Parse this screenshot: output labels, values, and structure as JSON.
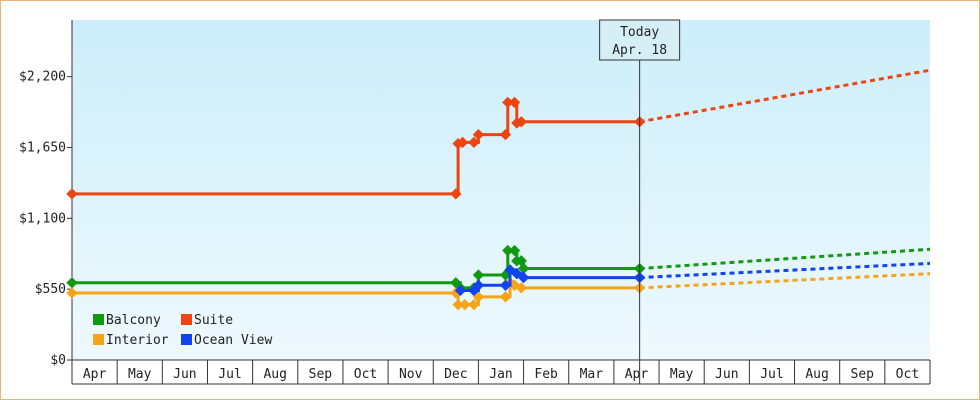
{
  "chart_data": {
    "type": "line",
    "title": "",
    "xlabel": "",
    "ylabel": "",
    "y_ticks": [
      "$0",
      "$550",
      "$1,100",
      "$1,650",
      "$2,200"
    ],
    "ylim": [
      0,
      2640
    ],
    "x_ticks": [
      "Apr",
      "May",
      "Jun",
      "Jul",
      "Aug",
      "Sep",
      "Oct",
      "Nov",
      "Dec",
      "Jan",
      "Feb",
      "Mar",
      "Apr",
      "May",
      "Jun",
      "Jul",
      "Aug",
      "Sep",
      "Oct"
    ],
    "xlim": [
      0,
      19
    ],
    "today": {
      "line1": "Today",
      "line2": "Apr. 18",
      "x": 12.57
    },
    "legend": {
      "placement": "bottom-left"
    },
    "grid": false,
    "series": [
      {
        "name": "Balcony",
        "color": "#119911",
        "step": true,
        "points": [
          [
            0.0,
            600
          ],
          [
            8.5,
            600
          ],
          [
            8.6,
            560
          ],
          [
            8.9,
            560
          ],
          [
            9.0,
            660
          ],
          [
            9.6,
            660
          ],
          [
            9.65,
            850
          ],
          [
            9.8,
            850
          ],
          [
            9.85,
            770
          ],
          [
            9.95,
            770
          ],
          [
            10.0,
            710
          ],
          [
            12.57,
            710
          ]
        ],
        "projection": [
          [
            12.57,
            710
          ],
          [
            19.0,
            860
          ]
        ]
      },
      {
        "name": "Suite",
        "color": "#ee4411",
        "step": true,
        "points": [
          [
            0.0,
            1290
          ],
          [
            8.5,
            1290
          ],
          [
            8.55,
            1680
          ],
          [
            8.65,
            1690
          ],
          [
            8.9,
            1690
          ],
          [
            9.0,
            1750
          ],
          [
            9.6,
            1750
          ],
          [
            9.65,
            2000
          ],
          [
            9.8,
            2000
          ],
          [
            9.85,
            1840
          ],
          [
            9.95,
            1850
          ],
          [
            12.57,
            1850
          ]
        ],
        "projection": [
          [
            12.57,
            1850
          ],
          [
            19.0,
            2250
          ]
        ]
      },
      {
        "name": "Interior",
        "color": "#f5a418",
        "step": true,
        "points": [
          [
            0.0,
            520
          ],
          [
            8.5,
            520
          ],
          [
            8.55,
            430
          ],
          [
            8.7,
            430
          ],
          [
            8.9,
            430
          ],
          [
            9.0,
            490
          ],
          [
            9.6,
            490
          ],
          [
            9.7,
            600
          ],
          [
            9.8,
            580
          ],
          [
            9.95,
            560
          ],
          [
            12.57,
            560
          ]
        ],
        "projection": [
          [
            12.57,
            560
          ],
          [
            19.0,
            670
          ]
        ]
      },
      {
        "name": "Ocean View",
        "color": "#1144ee",
        "step": true,
        "points": [
          [
            8.6,
            540
          ],
          [
            8.9,
            540
          ],
          [
            9.0,
            580
          ],
          [
            9.6,
            580
          ],
          [
            9.7,
            700
          ],
          [
            9.85,
            670
          ],
          [
            10.0,
            640
          ],
          [
            12.57,
            640
          ]
        ],
        "projection": [
          [
            12.57,
            640
          ],
          [
            19.0,
            750
          ]
        ]
      }
    ]
  }
}
